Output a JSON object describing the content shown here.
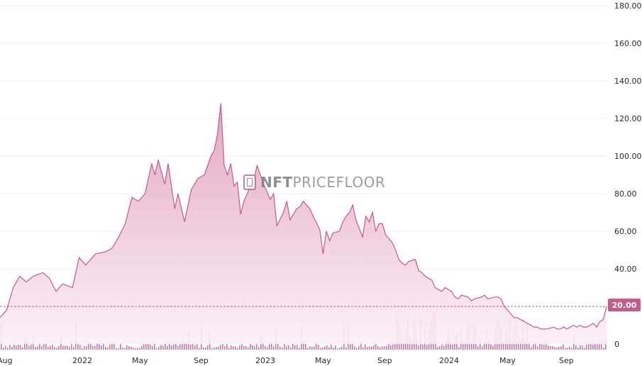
{
  "brand": {
    "watermark_bold": "NFT",
    "watermark_rest": "PRICEFLOOR"
  },
  "current_price_label": "20.00",
  "colors": {
    "line": "#c85a8a",
    "area_top": "#e4a9c3",
    "area_bottom": "#fbeef4",
    "volume": "#c2619a",
    "grid": "#ececec",
    "badge": "#c85a8a"
  },
  "chart_data": {
    "type": "area",
    "title": "",
    "xlabel": "",
    "ylabel": "",
    "ylim": [
      0,
      180
    ],
    "y_ticks": [
      "180.00",
      "160.00",
      "140.00",
      "120.00",
      "100.00",
      "80.00",
      "60.00",
      "40.00",
      "0"
    ],
    "x_ticks": [
      "Aug",
      "2022",
      "May",
      "Sep",
      "2023",
      "May",
      "Sep",
      "2024",
      "May",
      "Sep"
    ],
    "x_range": [
      "2021-08",
      "2024-12"
    ],
    "grid": true,
    "reference_line": 20,
    "series": [
      {
        "values": [
          [
            0,
            14
          ],
          [
            2,
            18
          ],
          [
            4,
            30
          ],
          [
            6,
            36
          ],
          [
            8,
            33
          ],
          [
            10,
            36
          ],
          [
            13,
            38
          ],
          [
            15,
            35
          ],
          [
            17,
            28
          ],
          [
            19,
            32
          ],
          [
            22,
            30
          ],
          [
            24,
            46
          ],
          [
            26,
            42
          ],
          [
            29,
            48
          ],
          [
            32,
            49
          ],
          [
            34,
            51
          ],
          [
            36,
            57
          ],
          [
            38,
            64
          ],
          [
            40,
            78
          ],
          [
            42,
            76
          ],
          [
            44,
            80
          ],
          [
            46,
            96
          ],
          [
            47,
            90
          ],
          [
            48,
            98
          ],
          [
            50,
            85
          ],
          [
            51,
            96
          ],
          [
            53,
            72
          ],
          [
            54,
            80
          ],
          [
            56,
            65
          ],
          [
            58,
            82
          ],
          [
            60,
            88
          ],
          [
            62,
            90
          ],
          [
            64,
            100
          ],
          [
            65,
            103
          ],
          [
            66,
            112
          ],
          [
            67,
            128
          ],
          [
            68,
            95
          ],
          [
            69,
            90
          ],
          [
            70,
            96
          ],
          [
            71,
            84
          ],
          [
            72,
            86
          ],
          [
            73,
            69
          ],
          [
            74,
            76
          ],
          [
            76,
            84
          ],
          [
            77,
            87
          ],
          [
            78,
            95
          ],
          [
            80,
            85
          ],
          [
            82,
            77
          ],
          [
            83,
            80
          ],
          [
            84,
            63
          ],
          [
            86,
            70
          ],
          [
            87,
            76
          ],
          [
            88,
            66
          ],
          [
            90,
            72
          ],
          [
            91,
            73
          ],
          [
            92,
            76
          ],
          [
            94,
            72
          ],
          [
            95,
            68
          ],
          [
            97,
            61
          ],
          [
            98,
            48
          ],
          [
            99,
            60
          ],
          [
            100,
            55
          ],
          [
            101,
            59
          ],
          [
            103,
            60
          ],
          [
            104,
            65
          ],
          [
            105,
            68
          ],
          [
            106,
            70
          ],
          [
            107,
            74
          ],
          [
            108,
            66
          ],
          [
            110,
            57
          ],
          [
            111,
            68
          ],
          [
            112,
            65
          ],
          [
            113,
            70
          ],
          [
            114,
            60
          ],
          [
            115,
            64
          ],
          [
            116,
            64
          ],
          [
            117,
            58
          ],
          [
            119,
            54
          ],
          [
            120,
            50
          ],
          [
            121,
            45
          ],
          [
            122,
            43
          ],
          [
            123,
            42
          ],
          [
            124,
            44
          ],
          [
            126,
            45
          ],
          [
            127,
            39
          ],
          [
            128,
            38
          ],
          [
            129,
            36
          ],
          [
            130,
            35
          ],
          [
            131,
            34
          ],
          [
            132,
            30
          ],
          [
            134,
            28
          ],
          [
            135,
            30
          ],
          [
            136,
            29
          ],
          [
            137,
            28
          ],
          [
            138,
            25
          ],
          [
            139,
            24
          ],
          [
            140,
            26
          ],
          [
            142,
            25
          ],
          [
            143,
            23
          ],
          [
            144,
            24
          ],
          [
            146,
            25
          ],
          [
            147,
            26
          ],
          [
            148,
            24
          ],
          [
            150,
            25
          ],
          [
            151,
            25
          ],
          [
            152,
            24
          ],
          [
            153,
            20
          ],
          [
            154,
            18
          ],
          [
            155,
            16
          ],
          [
            156,
            14
          ],
          [
            157,
            14
          ],
          [
            158,
            13
          ],
          [
            159,
            12
          ],
          [
            160,
            11
          ],
          [
            161,
            10
          ],
          [
            162,
            9
          ],
          [
            163,
            9
          ],
          [
            164,
            8
          ],
          [
            166,
            8
          ],
          [
            168,
            9
          ],
          [
            169,
            8
          ],
          [
            170,
            8
          ],
          [
            171,
            9
          ],
          [
            172,
            8
          ],
          [
            173,
            9
          ],
          [
            174,
            10
          ],
          [
            175,
            9
          ],
          [
            176,
            10
          ],
          [
            177,
            9
          ],
          [
            178,
            9
          ],
          [
            179,
            10
          ],
          [
            180,
            11
          ],
          [
            181,
            9
          ],
          [
            182,
            12
          ],
          [
            183,
            13
          ],
          [
            184,
            20
          ]
        ]
      }
    ],
    "volume_ticks": [
      "0"
    ]
  }
}
